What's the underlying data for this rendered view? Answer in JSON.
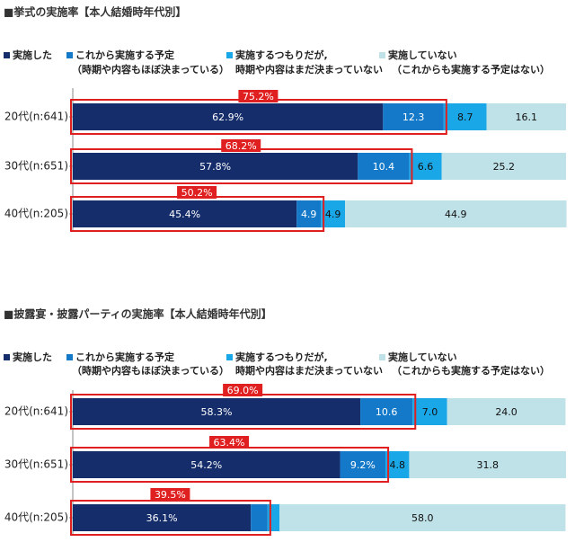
{
  "colors": {
    "done": "#152D6B",
    "planned": "#1479C9",
    "intend": "#1AA7E8",
    "none": "#BFE1E8",
    "highlight_border": "#E02020",
    "highlight_fill": "#E02020",
    "axis": "#8a8a8a"
  },
  "legend_labels": [
    {
      "line1": "実施した",
      "line2": ""
    },
    {
      "line1": "これから実施する予定",
      "line2": "（時期や内容もほぼ決まっている）"
    },
    {
      "line1": "実施するつもりだが,",
      "line2": "時期や内容はまだ決まっていない"
    },
    {
      "line1": "実施していない",
      "line2": "（これからも実施する予定はない）"
    }
  ],
  "chart_data": [
    {
      "type": "bar",
      "orientation": "horizontal",
      "stacked": true,
      "title": "■挙式の実施率【本人結婚時年代別】",
      "categories": [
        "20代(n:641)",
        "30代(n:651)",
        "40代(n:205)"
      ],
      "series": [
        {
          "name": "実施した",
          "values": [
            62.9,
            57.8,
            45.4
          ],
          "labels": [
            "62.9%",
            "57.8%",
            "45.4%"
          ]
        },
        {
          "name": "これから実施する予定",
          "values": [
            12.3,
            10.4,
            4.9
          ],
          "labels": [
            "12.3",
            "10.4",
            "4.9"
          ]
        },
        {
          "name": "実施するつもりだが,",
          "values": [
            8.7,
            6.6,
            4.9
          ],
          "labels": [
            "8.7",
            "6.6",
            "4.9"
          ]
        },
        {
          "name": "実施していない",
          "values": [
            16.1,
            25.2,
            44.9
          ],
          "labels": [
            "16.1",
            "25.2",
            "44.9"
          ]
        }
      ],
      "highlight_labels": [
        "75.2%",
        "68.2%",
        "50.2%"
      ],
      "xlim": [
        0,
        100
      ]
    },
    {
      "type": "bar",
      "orientation": "horizontal",
      "stacked": true,
      "title": "■披露宴・披露パーティの実施率【本人結婚時年代別】",
      "categories": [
        "20代(n:641)",
        "30代(n:651)",
        "40代(n:205)"
      ],
      "series": [
        {
          "name": "実施した",
          "values": [
            58.3,
            54.2,
            36.1
          ],
          "labels": [
            "58.3%",
            "54.2%",
            "36.1%"
          ]
        },
        {
          "name": "これから実施する予定",
          "values": [
            10.6,
            9.2,
            3.4
          ],
          "labels": [
            "10.6",
            "9.2%",
            "3.4"
          ]
        },
        {
          "name": "実施するつもりだが,",
          "values": [
            7.0,
            4.8,
            2.4
          ],
          "labels": [
            "7.0",
            "4.8",
            "2.4"
          ]
        },
        {
          "name": "実施していない",
          "values": [
            24.0,
            31.8,
            58.0
          ],
          "labels": [
            "24.0",
            "31.8",
            "58.0"
          ]
        }
      ],
      "highlight_labels": [
        "69.0%",
        "63.4%",
        "39.5%"
      ],
      "xlim": [
        0,
        100
      ]
    }
  ]
}
